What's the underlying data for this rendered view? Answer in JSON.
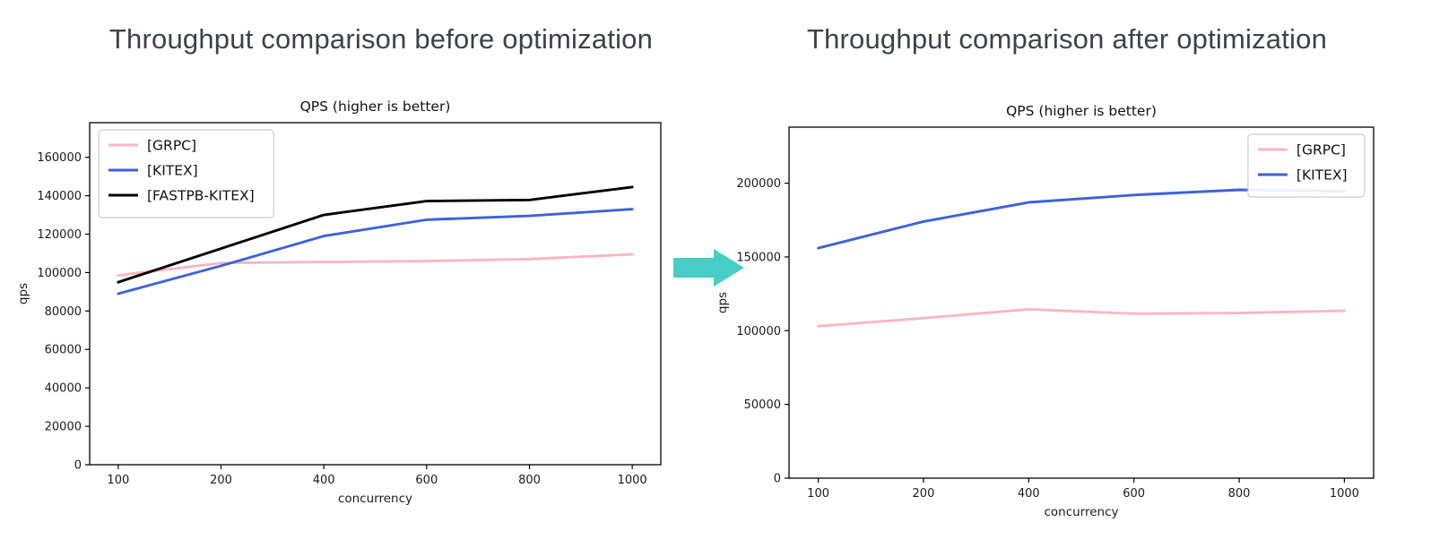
{
  "page": {
    "heading_before": "Throughput comparison before optimization",
    "heading_after": "Throughput comparison after optimization",
    "heading_color": "#3d4248",
    "arrow": {
      "direction": "right",
      "color": "#46cec5"
    }
  },
  "chart_data": [
    {
      "type": "line",
      "title": "QPS (higher is better)",
      "xlabel": "concurrency",
      "ylabel": "qps",
      "categories": [
        100,
        200,
        400,
        600,
        800,
        1000
      ],
      "ylim": [
        0,
        178000
      ],
      "yticks": [
        0,
        20000,
        40000,
        60000,
        80000,
        100000,
        120000,
        140000,
        160000
      ],
      "grid": false,
      "legend_position": "top-left",
      "series": [
        {
          "name": "[GRPC]",
          "color": "#f9b6c3",
          "values": [
            98500,
            105000,
            105500,
            106000,
            107000,
            109500
          ]
        },
        {
          "name": "[KITEX]",
          "color": "#3d62d8",
          "values": [
            89000,
            103500,
            119000,
            127500,
            129500,
            133000
          ]
        },
        {
          "name": "[FASTPB-KITEX]",
          "color": "#000000",
          "values": [
            95000,
            112500,
            130000,
            137200,
            137800,
            144500
          ]
        }
      ]
    },
    {
      "type": "line",
      "title": "QPS (higher is better)",
      "xlabel": "concurrency",
      "ylabel": "qps",
      "categories": [
        100,
        200,
        400,
        600,
        800,
        1000
      ],
      "ylim": [
        0,
        238000
      ],
      "yticks": [
        0,
        50000,
        100000,
        150000,
        200000
      ],
      "grid": false,
      "legend_position": "top-right",
      "series": [
        {
          "name": "[GRPC]",
          "color": "#f9b6c3",
          "values": [
            103000,
            108500,
            114500,
            111500,
            112000,
            113500
          ]
        },
        {
          "name": "[KITEX]",
          "color": "#3d62d8",
          "values": [
            156000,
            174000,
            187000,
            192000,
            195500,
            194500
          ]
        }
      ]
    }
  ]
}
